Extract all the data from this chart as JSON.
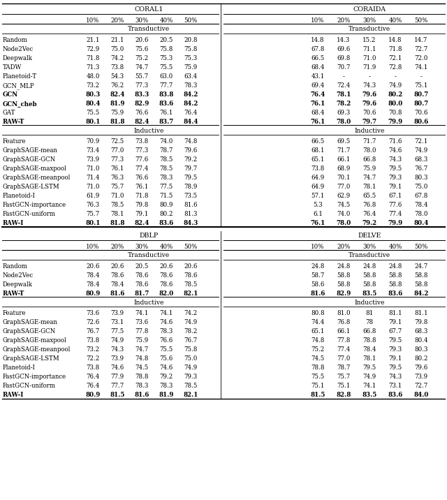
{
  "percentages": [
    "10%",
    "20%",
    "30%",
    "40%",
    "50%"
  ],
  "coral1_trans_rows": [
    [
      "Random",
      "21.1",
      "21.1",
      "20.6",
      "20.5",
      "20.8",
      false
    ],
    [
      "Node2Vec",
      "72.9",
      "75.0",
      "75.6",
      "75.8",
      "75.8",
      false
    ],
    [
      "Deepwalk",
      "71.8",
      "74.2",
      "75.2",
      "75.3",
      "75.3",
      false
    ],
    [
      "TADW",
      "71.3",
      "73.8",
      "74.7",
      "75.5",
      "75.9",
      false
    ],
    [
      "Planetoid-T",
      "48.0",
      "54.3",
      "55.7",
      "63.0",
      "63.4",
      false
    ],
    [
      "GCN_MLP",
      "73.2",
      "76.2",
      "77.3",
      "77.7",
      "78.3",
      false
    ],
    [
      "GCN",
      "80.3",
      "82.4",
      "83.3",
      "83.8",
      "84.2",
      true
    ],
    [
      "GCN_cheb",
      "80.4",
      "81.9",
      "82.9",
      "83.6",
      "84.2",
      true
    ],
    [
      "GAT",
      "75.5",
      "75.9",
      "76.6",
      "76.1",
      "76.4",
      false
    ],
    [
      "RAW-T",
      "80.1",
      "81.8",
      "82.4",
      "83.7",
      "84.4",
      true
    ]
  ],
  "coral1_ind_rows": [
    [
      "Feature",
      "70.9",
      "72.5",
      "73.8",
      "74.0",
      "74.8",
      false
    ],
    [
      "GraphSAGE-mean",
      "73.4",
      "77.0",
      "77.3",
      "78.7",
      "79.6",
      false
    ],
    [
      "GraphSAGE-GCN",
      "73.9",
      "77.3",
      "77.6",
      "78.5",
      "79.2",
      false
    ],
    [
      "GraphSAGE-maxpool",
      "71.0",
      "76.1",
      "77.4",
      "78.5",
      "79.7",
      false
    ],
    [
      "GraphSAGE-meanpool",
      "71.4",
      "76.3",
      "76.6",
      "78.3",
      "79.5",
      false
    ],
    [
      "GraphSAGE-LSTM",
      "71.0",
      "75.7",
      "76.1",
      "77.5",
      "78.9",
      false
    ],
    [
      "Planetoid-I",
      "61.9",
      "71.0",
      "71.8",
      "71.5",
      "73.5",
      false
    ],
    [
      "FastGCN-importance",
      "76.3",
      "78.5",
      "79.8",
      "80.9",
      "81.6",
      false
    ],
    [
      "FastGCN-uniform",
      "75.7",
      "78.1",
      "79.1",
      "80.2",
      "81.3",
      false
    ],
    [
      "RAW-I",
      "80.1",
      "81.8",
      "82.4",
      "83.6",
      "84.3",
      true
    ]
  ],
  "coraida_trans_rows": [
    [
      "14.8",
      "14.3",
      "15.2",
      "14.8",
      "14.7",
      false
    ],
    [
      "67.8",
      "69.6",
      "71.1",
      "71.8",
      "72.7",
      false
    ],
    [
      "66.5",
      "69.8",
      "71.0",
      "72.1",
      "72.0",
      false
    ],
    [
      "68.4",
      "70.7",
      "71.9",
      "72.8",
      "74.1",
      false
    ],
    [
      "43.1",
      "-",
      "-",
      "-",
      "-",
      false
    ],
    [
      "69.4",
      "72.4",
      "74.3",
      "74.9",
      "75.1",
      false
    ],
    [
      "76.4",
      "78.1",
      "79.6",
      "80.2",
      "80.7",
      true
    ],
    [
      "76.1",
      "78.2",
      "79.6",
      "80.0",
      "80.7",
      true
    ],
    [
      "68.4",
      "69.3",
      "70.6",
      "70.8",
      "70.6",
      false
    ],
    [
      "76.1",
      "78.0",
      "79.7",
      "79.9",
      "80.6",
      true
    ]
  ],
  "coraida_ind_rows": [
    [
      "66.5",
      "69.5",
      "71.7",
      "71.6",
      "72.1",
      false
    ],
    [
      "68.1",
      "71.7",
      "78.0",
      "74.6",
      "74.9",
      false
    ],
    [
      "65.1",
      "66.1",
      "66.8",
      "74.3",
      "68.3",
      false
    ],
    [
      "73.8",
      "68.9",
      "75.9",
      "79.5",
      "76.7",
      false
    ],
    [
      "64.9",
      "70.1",
      "74.7",
      "79.3",
      "80.3",
      false
    ],
    [
      "64.9",
      "77.0",
      "78.1",
      "79.1",
      "75.0",
      false
    ],
    [
      "57.1",
      "62.9",
      "65.5",
      "67.1",
      "67.8",
      false
    ],
    [
      "5.3",
      "74.5",
      "76.8",
      "77.6",
      "78.4",
      false
    ],
    [
      "6.1",
      "74.0",
      "76.4",
      "77.4",
      "78.0",
      false
    ],
    [
      "76.1",
      "78.0",
      "79.2",
      "79.9",
      "80.4",
      true
    ]
  ],
  "dblp_trans_rows": [
    [
      "Random",
      "20.6",
      "20.6",
      "20.5",
      "20.6",
      "20.6",
      false
    ],
    [
      "Node2Vec",
      "78.4",
      "78.6",
      "78.6",
      "78.6",
      "78.6",
      false
    ],
    [
      "Deepwalk",
      "78.4",
      "78.4",
      "78.6",
      "78.6",
      "78.5",
      false
    ],
    [
      "RAW-T",
      "80.9",
      "81.6",
      "81.7",
      "82.0",
      "82.1",
      true
    ]
  ],
  "dblp_ind_rows": [
    [
      "Feature",
      "73.6",
      "73.9",
      "74.1",
      "74.1",
      "74.2",
      false
    ],
    [
      "GraphSAGE-mean",
      "72.6",
      "73.1",
      "73.6",
      "74.6",
      "74.9",
      false
    ],
    [
      "GraphSAGE-GCN",
      "76.7",
      "77.5",
      "77.8",
      "78.3",
      "78.2",
      false
    ],
    [
      "GraphSAGE-maxpool",
      "73.8",
      "74.9",
      "75.9",
      "76.6",
      "76.7",
      false
    ],
    [
      "GraphSAGE-meanpool",
      "73.2",
      "74.3",
      "74.7",
      "75.5",
      "75.8",
      false
    ],
    [
      "GraphSAGE-LSTM",
      "72.2",
      "73.9",
      "74.8",
      "75.6",
      "75.0",
      false
    ],
    [
      "Planetoid-I",
      "73.8",
      "74.6",
      "74.5",
      "74.6",
      "74.9",
      false
    ],
    [
      "FastGCN-importance",
      "76.4",
      "77.9",
      "78.8",
      "79.2",
      "79.3",
      false
    ],
    [
      "FastGCN-uniform",
      "76.4",
      "77.7",
      "78.3",
      "78.3",
      "78.5",
      false
    ],
    [
      "RAW-I",
      "80.9",
      "81.5",
      "81.6",
      "81.9",
      "82.1",
      true
    ]
  ],
  "delve_trans_rows": [
    [
      "24.8",
      "24.8",
      "24.8",
      "24.8",
      "24.7",
      false
    ],
    [
      "58.7",
      "58.8",
      "58.8",
      "58.8",
      "58.8",
      false
    ],
    [
      "58.6",
      "58.8",
      "58.8",
      "58.8",
      "58.8",
      false
    ],
    [
      "81.6",
      "82.9",
      "83.5",
      "83.6",
      "84.2",
      true
    ]
  ],
  "delve_ind_rows": [
    [
      "80.8",
      "81.0",
      "81",
      "81.1",
      "81.1",
      false
    ],
    [
      "74.4",
      "76.8",
      "78",
      "79.1",
      "79.8",
      false
    ],
    [
      "65.1",
      "66.1",
      "66.8",
      "67.7",
      "68.3",
      false
    ],
    [
      "74.8",
      "77.8",
      "78.8",
      "79.5",
      "80.4",
      false
    ],
    [
      "75.2",
      "77.4",
      "78.4",
      "79.3",
      "80.3",
      false
    ],
    [
      "74.5",
      "77.0",
      "78.1",
      "79.1",
      "80.2",
      false
    ],
    [
      "78.8",
      "78.7",
      "79.5",
      "79.5",
      "79.6",
      false
    ],
    [
      "75.5",
      "75.7",
      "74.9",
      "74.3",
      "73.9",
      false
    ],
    [
      "75.1",
      "75.1",
      "74.1",
      "73.1",
      "72.7",
      false
    ],
    [
      "81.5",
      "82.8",
      "83.5",
      "83.6",
      "84.0",
      true
    ]
  ]
}
